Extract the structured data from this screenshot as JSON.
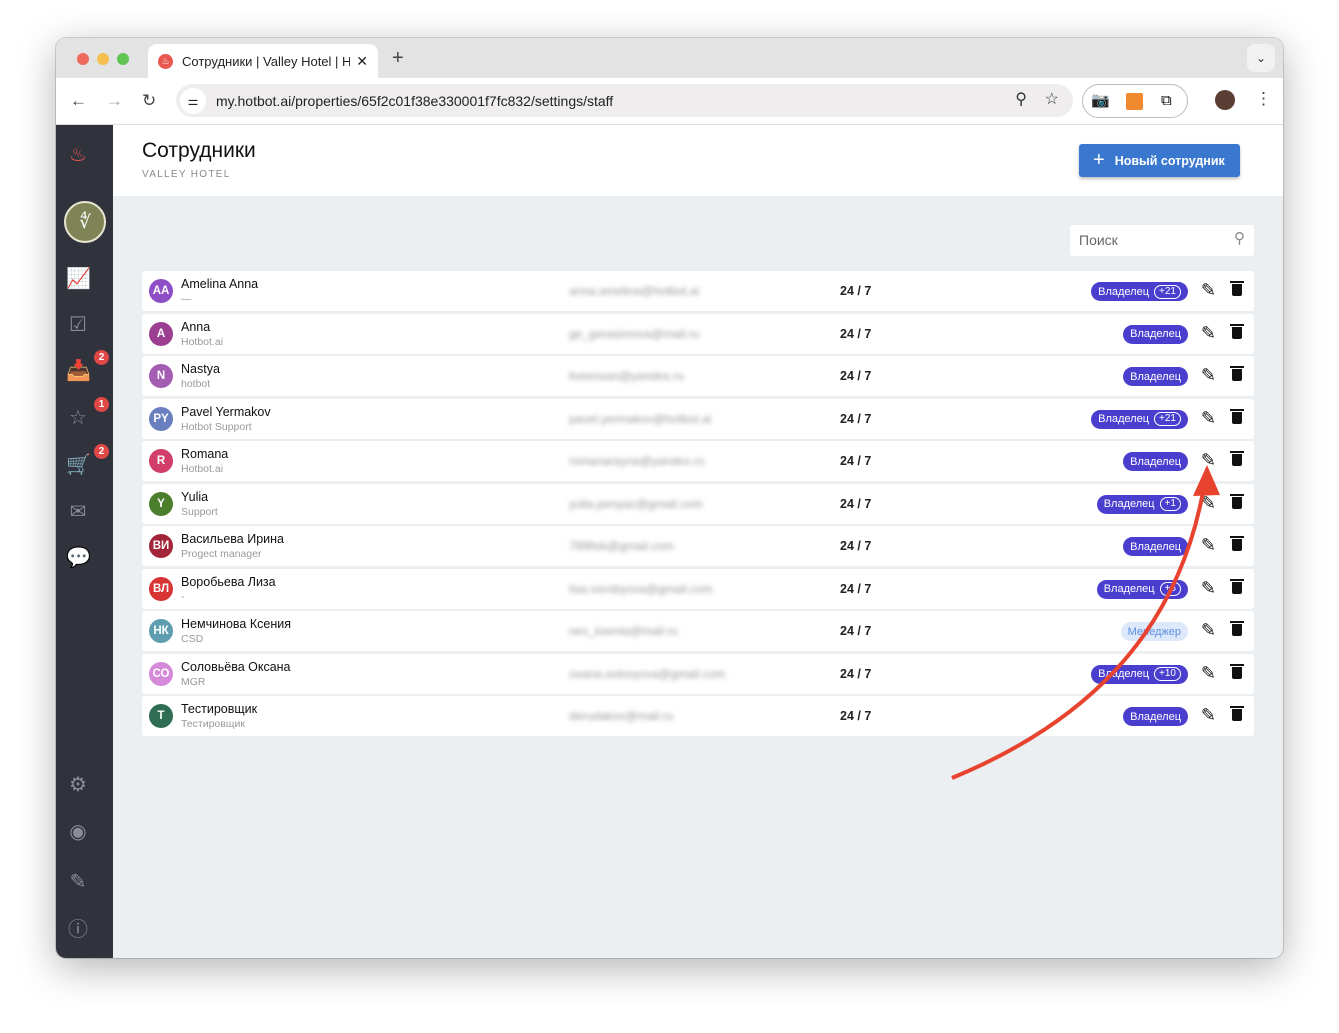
{
  "browser": {
    "tab_title": "Сотрудники | Valley Hotel | Hotbot",
    "url": "my.hotbot.ai/properties/65f2c01f38e330001f7fc832/settings/staff"
  },
  "sidebar": {
    "badges": {
      "inbox": "2",
      "reviews": "1",
      "orders": "2"
    }
  },
  "header": {
    "title": "Сотрудники",
    "subtitle": "VALLEY HOTEL",
    "new_button": "Новый сотрудник"
  },
  "search": {
    "placeholder": "Поиск"
  },
  "colors": {
    "accent": "#3a78d0",
    "owner_badge": "#4a3ecf",
    "sidebar": "#30333c",
    "annotation": "#e8432e"
  },
  "staff": [
    {
      "initials": "AA",
      "color": "#8e4ec6",
      "name": "Amelina Anna",
      "desc": "—",
      "email": "anna.amelina@hotbot.ai",
      "schedule": "24 / 7",
      "role": "Владелец",
      "extra": "+21"
    },
    {
      "initials": "A",
      "color": "#9c3f91",
      "name": "Anna",
      "desc": "Hotbot.ai",
      "email": "ge_gerasimova@mail.ru",
      "schedule": "24 / 7",
      "role": "Владелец",
      "extra": ""
    },
    {
      "initials": "N",
      "color": "#a45db3",
      "name": "Nastya",
      "desc": "hotbot",
      "email": "liveesvan@yandex.ru",
      "schedule": "24 / 7",
      "role": "Владелец",
      "extra": ""
    },
    {
      "initials": "PY",
      "color": "#6a7fbf",
      "name": "Pavel Yermakov",
      "desc": "Hotbot Support",
      "email": "pavel.yermakov@hotbot.ai",
      "schedule": "24 / 7",
      "role": "Владелец",
      "extra": "+21"
    },
    {
      "initials": "R",
      "color": "#d13e6a",
      "name": "Romana",
      "desc": "Hotbot.ai",
      "email": "romanarayna@yandex.ru",
      "schedule": "24 / 7",
      "role": "Владелец",
      "extra": ""
    },
    {
      "initials": "Y",
      "color": "#4b7f2e",
      "name": "Yulia",
      "desc": "Support",
      "email": "yulia.penyaz@gmail.com",
      "schedule": "24 / 7",
      "role": "Владелец",
      "extra": "+1"
    },
    {
      "initials": "ВИ",
      "color": "#a3253a",
      "name": "Васильева Ирина",
      "desc": "Progect manager",
      "email": "789ltsk@gmail.com",
      "schedule": "24 / 7",
      "role": "Владелец",
      "extra": ""
    },
    {
      "initials": "ВЛ",
      "color": "#d83434",
      "name": "Воробьева Лиза",
      "desc": "-",
      "email": "lisa.vorobyova@gmail.com",
      "schedule": "24 / 7",
      "role": "Владелец",
      "extra": "+6"
    },
    {
      "initials": "НК",
      "color": "#5f9db0",
      "name": "Немчинова Ксения",
      "desc": "CSD",
      "email": "nes_ksenia@mail.ru",
      "schedule": "24 / 7",
      "role": "Менеджер",
      "extra": ""
    },
    {
      "initials": "СО",
      "color": "#d48ad8",
      "name": "Соловьёва Оксана",
      "desc": "MGR",
      "email": "oxana.solovyova@gmail.com",
      "schedule": "24 / 7",
      "role": "Владелец",
      "extra": "+10"
    },
    {
      "initials": "Т",
      "color": "#2f6e55",
      "name": "Тестировщик",
      "desc": "Тестировщик",
      "email": "derudakov@mail.ru",
      "schedule": "24 / 7",
      "role": "Владелец",
      "extra": ""
    }
  ]
}
